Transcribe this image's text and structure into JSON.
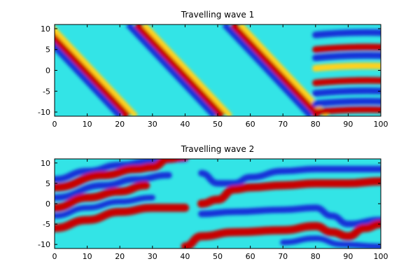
{
  "chart_data": [
    {
      "type": "heatmap",
      "title": "Travelling wave 1",
      "xlabel": "",
      "ylabel": "",
      "xlim": [
        0,
        100
      ],
      "ylim": [
        -11,
        11
      ],
      "xticks": [
        0,
        10,
        20,
        30,
        40,
        50,
        60,
        70,
        80,
        90,
        100
      ],
      "yticks": [
        10,
        5,
        0,
        -5,
        -10
      ],
      "colormap": "jet",
      "background": "#33e4e6",
      "stripes": [
        {
          "color": "#c80000",
          "x_bottom": 22.5,
          "x_top": -4,
          "width": 2.0
        },
        {
          "color": "#1430d8",
          "x_bottom": 20.0,
          "x_top": -6.5,
          "width": 1.4
        },
        {
          "color": "#ffd21e",
          "x_bottom": 25.0,
          "x_top": -1.5,
          "width": 1.2
        },
        {
          "color": "#c80000",
          "x_bottom": 51.5,
          "x_top": 25.0,
          "width": 2.0
        },
        {
          "color": "#1430d8",
          "x_bottom": 49.0,
          "x_top": 22.5,
          "width": 1.4
        },
        {
          "color": "#ffd21e",
          "x_bottom": 54.0,
          "x_top": 27.5,
          "width": 1.2
        },
        {
          "color": "#c80000",
          "x_bottom": 81.0,
          "x_top": 54.5,
          "width": 2.0
        },
        {
          "color": "#1430d8",
          "x_bottom": 78.5,
          "x_top": 52.0,
          "width": 1.4
        },
        {
          "color": "#ffd21e",
          "x_bottom": 83.5,
          "x_top": 57.0,
          "width": 1.2
        }
      ],
      "turbulent_region": {
        "x_from": 80,
        "bands": [
          {
            "y": 9.0,
            "color": "#1430d8"
          },
          {
            "y": 5.5,
            "color": "#c80000"
          },
          {
            "y": 3.5,
            "color": "#1430d8"
          },
          {
            "y": 1.0,
            "color": "#ffd21e"
          },
          {
            "y": -2.5,
            "color": "#c80000"
          },
          {
            "y": -5.0,
            "color": "#1430d8"
          },
          {
            "y": -7.5,
            "color": "#1430d8"
          },
          {
            "y": -9.5,
            "color": "#c80000"
          }
        ]
      }
    },
    {
      "type": "heatmap",
      "title": "Travelling wave 2",
      "xlabel": "",
      "ylabel": "",
      "xlim": [
        0,
        100
      ],
      "ylim": [
        -11,
        11
      ],
      "xticks": [
        0,
        10,
        20,
        30,
        40,
        50,
        60,
        70,
        80,
        90,
        100
      ],
      "yticks": [
        10,
        5,
        0,
        -5,
        -10
      ],
      "colormap": "jet",
      "background": "#33e4e6",
      "paths": [
        {
          "color": "#1430d8",
          "width": 1.6,
          "points": [
            [
              0,
              6
            ],
            [
              10,
              8
            ],
            [
              20,
              9.5
            ],
            [
              30,
              10.5
            ],
            [
              40,
              11
            ]
          ]
        },
        {
          "color": "#c80000",
          "width": 2.0,
          "points": [
            [
              0,
              4
            ],
            [
              15,
              7
            ],
            [
              25,
              8.5
            ],
            [
              30,
              9
            ],
            [
              35,
              11
            ],
            [
              40,
              11.5
            ]
          ]
        },
        {
          "color": "#1430d8",
          "width": 1.6,
          "points": [
            [
              0,
              1.5
            ],
            [
              15,
              4.5
            ],
            [
              25,
              6
            ],
            [
              35,
              7
            ]
          ]
        },
        {
          "color": "#c80000",
          "width": 2.0,
          "points": [
            [
              0,
              -1
            ],
            [
              10,
              1.5
            ],
            [
              20,
              3
            ],
            [
              28,
              4.5
            ]
          ]
        },
        {
          "color": "#1430d8",
          "width": 1.4,
          "points": [
            [
              0,
              -3
            ],
            [
              10,
              -1
            ],
            [
              20,
              0.5
            ],
            [
              30,
              1.5
            ]
          ]
        },
        {
          "color": "#c80000",
          "width": 2.0,
          "points": [
            [
              0,
              -6
            ],
            [
              10,
              -4
            ],
            [
              20,
              -2
            ],
            [
              30,
              -1
            ],
            [
              40,
              -1
            ]
          ]
        },
        {
          "color": "#1430d8",
          "width": 1.6,
          "points": [
            [
              45,
              7.5
            ],
            [
              50,
              5
            ],
            [
              55,
              5
            ],
            [
              60,
              6.5
            ],
            [
              70,
              8
            ],
            [
              80,
              8.5
            ],
            [
              100,
              8.5
            ]
          ]
        },
        {
          "color": "#c80000",
          "width": 2.0,
          "points": [
            [
              45,
              0
            ],
            [
              50,
              1
            ],
            [
              55,
              3.5
            ],
            [
              60,
              4
            ],
            [
              70,
              4.5
            ],
            [
              80,
              5
            ],
            [
              90,
              5
            ],
            [
              100,
              5.5
            ]
          ]
        },
        {
          "color": "#1430d8",
          "width": 1.6,
          "points": [
            [
              45,
              -2.5
            ],
            [
              55,
              -2
            ],
            [
              70,
              -1.5
            ],
            [
              80,
              -1
            ],
            [
              85,
              -3
            ],
            [
              90,
              -5
            ],
            [
              100,
              -4
            ]
          ]
        },
        {
          "color": "#c80000",
          "width": 2.0,
          "points": [
            [
              40,
              -10.5
            ],
            [
              45,
              -8
            ],
            [
              55,
              -7
            ],
            [
              70,
              -6.5
            ],
            [
              80,
              -5.5
            ],
            [
              85,
              -7
            ],
            [
              90,
              -8
            ],
            [
              95,
              -6
            ],
            [
              100,
              -5
            ]
          ]
        },
        {
          "color": "#1430d8",
          "width": 1.4,
          "points": [
            [
              70,
              -9.5
            ],
            [
              80,
              -8.5
            ],
            [
              88,
              -10
            ],
            [
              100,
              -10.5
            ]
          ]
        }
      ]
    }
  ]
}
